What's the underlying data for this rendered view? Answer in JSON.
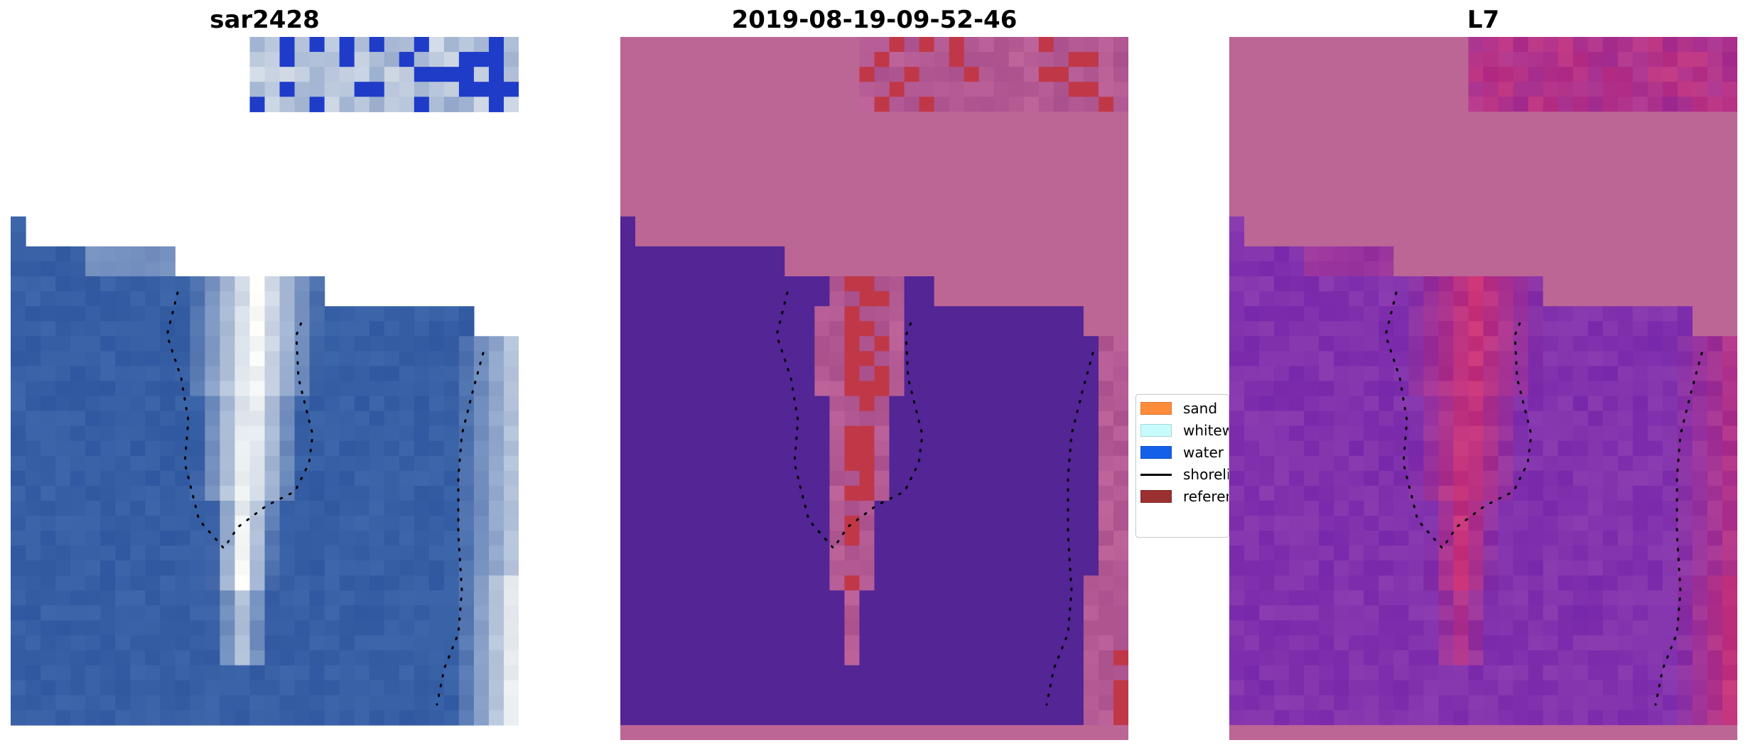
{
  "panels": [
    {
      "title": "sar2428"
    },
    {
      "title": "2019-08-19-09-52-46"
    },
    {
      "title": "L7"
    }
  ],
  "legend": {
    "items": [
      {
        "label": "sand",
        "color": "#ff8c3a"
      },
      {
        "label": "whitewater",
        "color": "#c8fcfc"
      },
      {
        "label": "water",
        "color": "#1460e8"
      },
      {
        "label": "shoreline",
        "color": "#000000"
      },
      {
        "label": "reference shoreline",
        "color": "#9a3030"
      }
    ]
  },
  "colors": {
    "mask_pink": "#bc6696",
    "water_purple": "#532595",
    "class_red": "#c03848",
    "rgb_blue": "#2f58a0"
  }
}
